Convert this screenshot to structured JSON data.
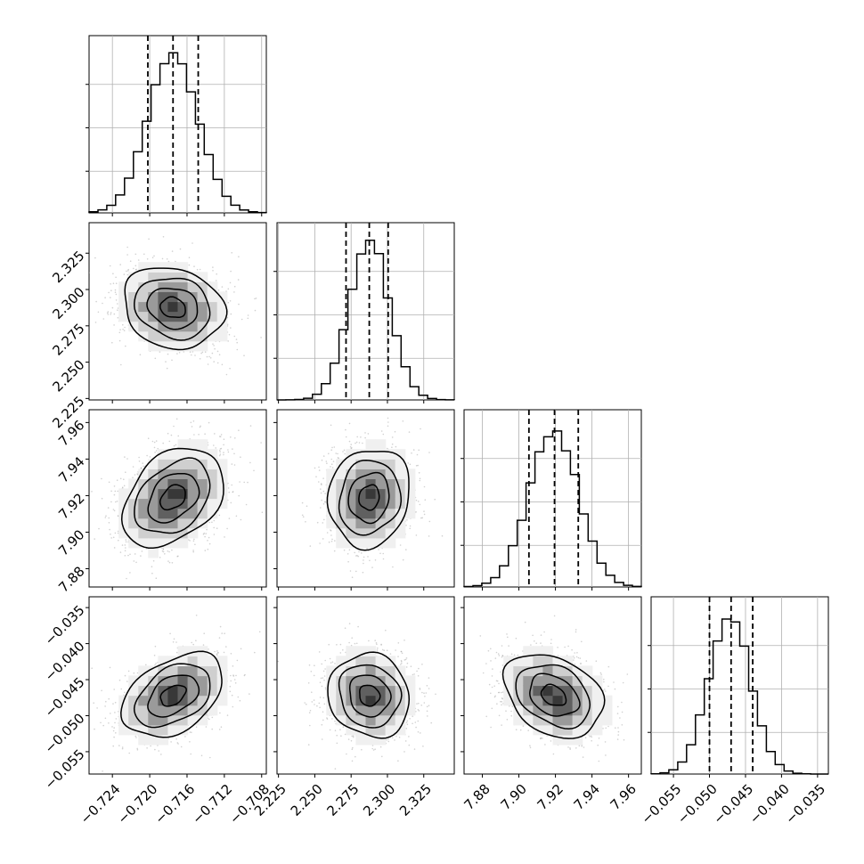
{
  "chart_data": {
    "type": "corner",
    "title": "",
    "grid": true,
    "parameters": [
      {
        "range": [
          -0.7265,
          -0.7075
        ],
        "ticks": [
          "−0.724",
          "−0.720",
          "−0.716",
          "−0.712",
          "−0.708"
        ],
        "tick_values": [
          -0.724,
          -0.72,
          -0.716,
          -0.712,
          -0.708
        ],
        "quantiles": [
          -0.7202,
          -0.7175,
          -0.7148
        ],
        "mean": -0.7175,
        "sigma": 0.0027
      },
      {
        "range": [
          2.224,
          2.346
        ],
        "ticks": [
          "2.225",
          "2.250",
          "2.275",
          "2.300",
          "2.325"
        ],
        "tick_values": [
          2.225,
          2.25,
          2.275,
          2.3,
          2.325
        ],
        "quantiles": [
          2.2715,
          2.2875,
          2.3005
        ],
        "mean": 2.2875,
        "sigma": 0.014
      },
      {
        "range": [
          7.87,
          7.967
        ],
        "ticks": [
          "7.88",
          "7.90",
          "7.92",
          "7.94",
          "7.96"
        ],
        "tick_values": [
          7.88,
          7.9,
          7.92,
          7.94,
          7.96
        ],
        "quantiles": [
          7.9055,
          7.9195,
          7.9325
        ],
        "mean": 7.919,
        "sigma": 0.0135
      },
      {
        "range": [
          -0.0581,
          -0.0335
        ],
        "ticks": [
          "−0.055",
          "−0.050",
          "−0.045",
          "−0.040",
          "−0.035"
        ],
        "tick_values": [
          -0.055,
          -0.05,
          -0.045,
          -0.04,
          -0.035
        ],
        "quantiles": [
          -0.05,
          -0.047,
          -0.044
        ],
        "mean": -0.0472,
        "sigma": 0.0029
      }
    ],
    "correlations": [
      {
        "pair": [
          0,
          1
        ],
        "rho": -0.15
      },
      {
        "pair": [
          0,
          2
        ],
        "rho": 0.35
      },
      {
        "pair": [
          0,
          3
        ],
        "rho": 0.4
      },
      {
        "pair": [
          1,
          2
        ],
        "rho": 0.1
      },
      {
        "pair": [
          1,
          3
        ],
        "rho": -0.1
      },
      {
        "pair": [
          2,
          3
        ],
        "rho": -0.3
      }
    ]
  }
}
